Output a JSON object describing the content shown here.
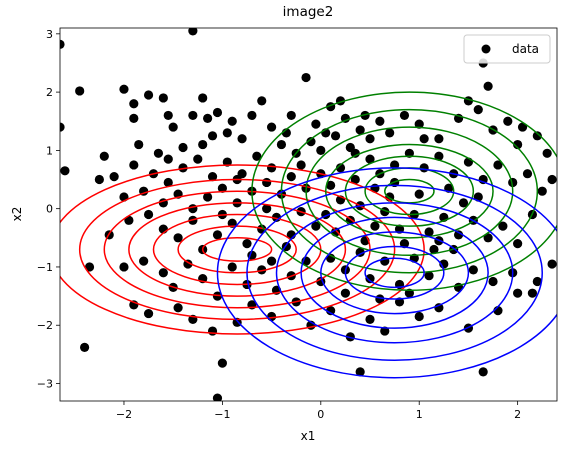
{
  "chart_data": {
    "type": "scatter",
    "title": "image2",
    "xlabel": "x1",
    "ylabel": "x2",
    "xlim": [
      -2.65,
      2.4
    ],
    "ylim": [
      -3.3,
      3.1
    ],
    "xticks": [
      -2,
      -1,
      0,
      1,
      2
    ],
    "yticks": [
      -3,
      -2,
      -1,
      0,
      1,
      2,
      3
    ],
    "xtick_labels": [
      "−2",
      "−1",
      "0",
      "1",
      "2"
    ],
    "ytick_labels": [
      "−3",
      "−2",
      "−1",
      "0",
      "1",
      "2",
      "3"
    ],
    "legend": {
      "position": "top-right",
      "entries": [
        "data"
      ]
    },
    "scatter_color": "#000000",
    "gaussians": [
      {
        "color": "#ff0000",
        "mean": [
          -0.85,
          -0.7
        ],
        "radii_x": [
          0.35,
          0.6,
          0.85,
          1.1,
          1.35,
          1.6,
          1.9
        ],
        "radii_y": [
          0.2,
          0.4,
          0.6,
          0.8,
          1.0,
          1.2,
          1.45
        ]
      },
      {
        "color": "#008000",
        "mean": [
          0.9,
          0.3
        ],
        "radii_x": [
          0.25,
          0.45,
          0.65,
          0.85,
          1.05,
          1.3,
          1.6
        ],
        "radii_y": [
          0.2,
          0.4,
          0.6,
          0.8,
          1.1,
          1.4,
          1.7
        ]
      },
      {
        "color": "#0000ff",
        "mean": [
          0.75,
          -1.1
        ],
        "radii_x": [
          0.3,
          0.5,
          0.75,
          0.95,
          1.2,
          1.5,
          1.8
        ],
        "radii_y": [
          0.25,
          0.45,
          0.7,
          0.95,
          1.2,
          1.5,
          1.8
        ]
      }
    ],
    "points": [
      [
        -2.65,
        2.82
      ],
      [
        -1.3,
        3.05
      ],
      [
        -2.45,
        2.02
      ],
      [
        -2.0,
        2.05
      ],
      [
        -1.75,
        1.95
      ],
      [
        -1.9,
        1.8
      ],
      [
        -1.6,
        1.9
      ],
      [
        -1.2,
        1.9
      ],
      [
        -1.55,
        1.6
      ],
      [
        -1.9,
        1.55
      ],
      [
        -2.65,
        1.4
      ],
      [
        -2.6,
        0.65
      ],
      [
        -1.5,
        1.4
      ],
      [
        -1.3,
        1.6
      ],
      [
        -1.15,
        1.55
      ],
      [
        -1.05,
        1.65
      ],
      [
        -0.9,
        1.5
      ],
      [
        -0.6,
        1.85
      ],
      [
        -0.7,
        1.6
      ],
      [
        -1.85,
        1.1
      ],
      [
        -1.65,
        0.95
      ],
      [
        -1.4,
        1.05
      ],
      [
        -1.2,
        1.1
      ],
      [
        -1.1,
        1.25
      ],
      [
        -0.95,
        1.3
      ],
      [
        -0.8,
        1.2
      ],
      [
        -0.5,
        1.4
      ],
      [
        -0.3,
        1.6
      ],
      [
        -0.15,
        2.25
      ],
      [
        -0.05,
        1.45
      ],
      [
        0.1,
        1.75
      ],
      [
        0.2,
        1.85
      ],
      [
        0.25,
        1.55
      ],
      [
        0.4,
        1.35
      ],
      [
        -2.2,
        0.9
      ],
      [
        -1.9,
        0.75
      ],
      [
        -1.7,
        0.6
      ],
      [
        -1.55,
        0.45
      ],
      [
        -1.4,
        0.7
      ],
      [
        -1.25,
        0.85
      ],
      [
        -1.1,
        0.55
      ],
      [
        -0.95,
        0.8
      ],
      [
        -0.8,
        0.6
      ],
      [
        -0.65,
        0.9
      ],
      [
        -0.5,
        0.7
      ],
      [
        -0.4,
        1.1
      ],
      [
        -0.25,
        0.95
      ],
      [
        -0.1,
        1.15
      ],
      [
        0.0,
        1.0
      ],
      [
        0.15,
        1.25
      ],
      [
        0.3,
        1.05
      ],
      [
        0.5,
        1.2
      ],
      [
        0.6,
        1.5
      ],
      [
        0.7,
        1.3
      ],
      [
        0.85,
        1.6
      ],
      [
        1.0,
        1.45
      ],
      [
        1.2,
        1.2
      ],
      [
        1.4,
        1.55
      ],
      [
        1.5,
        1.85
      ],
      [
        1.6,
        1.7
      ],
      [
        1.7,
        2.1
      ],
      [
        1.65,
        2.5
      ],
      [
        1.9,
        1.5
      ],
      [
        2.05,
        1.4
      ],
      [
        2.2,
        1.25
      ],
      [
        2.3,
        0.95
      ],
      [
        -2.25,
        0.5
      ],
      [
        -2.0,
        0.2
      ],
      [
        -1.8,
        0.3
      ],
      [
        -1.6,
        0.1
      ],
      [
        -1.45,
        0.25
      ],
      [
        -1.3,
        0.0
      ],
      [
        -1.15,
        0.2
      ],
      [
        -1.0,
        0.35
      ],
      [
        -0.85,
        0.1
      ],
      [
        -0.7,
        0.3
      ],
      [
        -0.55,
        0.45
      ],
      [
        -0.4,
        0.25
      ],
      [
        -0.3,
        0.55
      ],
      [
        -0.15,
        0.35
      ],
      [
        0.0,
        0.6
      ],
      [
        0.1,
        0.4
      ],
      [
        0.2,
        0.7
      ],
      [
        0.35,
        0.5
      ],
      [
        0.5,
        0.85
      ],
      [
        0.6,
        0.6
      ],
      [
        0.75,
        0.75
      ],
      [
        0.9,
        0.95
      ],
      [
        1.05,
        0.7
      ],
      [
        1.2,
        0.9
      ],
      [
        1.35,
        0.6
      ],
      [
        1.5,
        0.8
      ],
      [
        1.65,
        0.5
      ],
      [
        1.8,
        0.75
      ],
      [
        1.95,
        0.45
      ],
      [
        2.1,
        0.6
      ],
      [
        2.25,
        0.3
      ],
      [
        -2.15,
        -0.45
      ],
      [
        -1.95,
        -0.2
      ],
      [
        -1.75,
        -0.1
      ],
      [
        -1.6,
        -0.35
      ],
      [
        -1.45,
        -0.5
      ],
      [
        -1.3,
        -0.2
      ],
      [
        -1.2,
        -0.7
      ],
      [
        -1.05,
        -0.45
      ],
      [
        -0.9,
        -0.25
      ],
      [
        -0.75,
        -0.6
      ],
      [
        -0.6,
        -0.35
      ],
      [
        -0.45,
        -0.15
      ],
      [
        -0.3,
        -0.45
      ],
      [
        -0.2,
        -0.05
      ],
      [
        -0.05,
        -0.3
      ],
      [
        0.05,
        -0.1
      ],
      [
        0.15,
        -0.4
      ],
      [
        0.3,
        -0.2
      ],
      [
        0.4,
        0.05
      ],
      [
        0.55,
        -0.3
      ],
      [
        0.65,
        -0.05
      ],
      [
        0.8,
        -0.35
      ],
      [
        0.95,
        -0.1
      ],
      [
        1.1,
        -0.4
      ],
      [
        1.25,
        -0.15
      ],
      [
        1.4,
        -0.45
      ],
      [
        1.55,
        -0.2
      ],
      [
        1.7,
        -0.5
      ],
      [
        1.85,
        -0.3
      ],
      [
        2.0,
        -0.6
      ],
      [
        2.15,
        -0.1
      ],
      [
        2.35,
        -0.95
      ],
      [
        -2.35,
        -1.0
      ],
      [
        -2.0,
        -1.0
      ],
      [
        -1.8,
        -0.9
      ],
      [
        -1.6,
        -1.1
      ],
      [
        -1.5,
        -1.35
      ],
      [
        -1.35,
        -0.95
      ],
      [
        -1.2,
        -1.2
      ],
      [
        -1.05,
        -1.5
      ],
      [
        -0.9,
        -1.0
      ],
      [
        -0.75,
        -1.3
      ],
      [
        -0.6,
        -1.05
      ],
      [
        -0.45,
        -1.4
      ],
      [
        -0.3,
        -1.15
      ],
      [
        -0.15,
        -0.9
      ],
      [
        0.0,
        -1.25
      ],
      [
        0.1,
        -0.85
      ],
      [
        0.25,
        -1.05
      ],
      [
        0.4,
        -0.75
      ],
      [
        0.5,
        -1.2
      ],
      [
        0.65,
        -0.9
      ],
      [
        0.8,
        -1.3
      ],
      [
        0.95,
        -0.85
      ],
      [
        1.1,
        -1.15
      ],
      [
        1.25,
        -0.95
      ],
      [
        1.4,
        -1.35
      ],
      [
        1.55,
        -1.05
      ],
      [
        1.75,
        -1.25
      ],
      [
        1.95,
        -1.1
      ],
      [
        2.15,
        -1.45
      ],
      [
        -2.4,
        -2.38
      ],
      [
        -1.9,
        -1.65
      ],
      [
        -1.75,
        -1.8
      ],
      [
        -1.45,
        -1.7
      ],
      [
        -1.3,
        -1.9
      ],
      [
        -1.1,
        -2.1
      ],
      [
        -0.85,
        -1.95
      ],
      [
        -0.7,
        -1.65
      ],
      [
        -0.5,
        -1.85
      ],
      [
        -0.25,
        -1.6
      ],
      [
        -0.1,
        -2.0
      ],
      [
        0.1,
        -1.75
      ],
      [
        0.3,
        -2.2
      ],
      [
        0.5,
        -1.9
      ],
      [
        0.65,
        -2.1
      ],
      [
        0.8,
        -1.6
      ],
      [
        1.0,
        -1.85
      ],
      [
        1.2,
        -1.7
      ],
      [
        1.5,
        -2.05
      ],
      [
        1.8,
        -1.75
      ],
      [
        2.0,
        -1.45
      ],
      [
        2.2,
        -1.25
      ],
      [
        -1.0,
        -2.65
      ],
      [
        -1.05,
        -3.25
      ],
      [
        0.4,
        -2.8
      ],
      [
        1.65,
        -2.8
      ],
      [
        -0.55,
        0.0
      ],
      [
        -0.35,
        -0.65
      ],
      [
        0.2,
        0.15
      ],
      [
        0.45,
        -0.55
      ],
      [
        0.7,
        0.2
      ],
      [
        0.85,
        -0.6
      ],
      [
        1.0,
        0.25
      ],
      [
        1.15,
        -0.7
      ],
      [
        -0.7,
        -0.8
      ],
      [
        -0.2,
        0.75
      ],
      [
        0.35,
        0.95
      ],
      [
        0.55,
        0.35
      ],
      [
        0.75,
        0.45
      ],
      [
        1.3,
        0.35
      ],
      [
        1.45,
        0.1
      ],
      [
        1.6,
        0.2
      ],
      [
        -0.85,
        0.5
      ],
      [
        -1.0,
        -0.1
      ],
      [
        -0.5,
        -0.9
      ],
      [
        0.25,
        -1.45
      ],
      [
        0.6,
        -1.55
      ],
      [
        0.9,
        -1.45
      ],
      [
        1.2,
        -0.55
      ],
      [
        1.35,
        -0.7
      ],
      [
        2.35,
        0.5
      ],
      [
        -2.1,
        0.55
      ],
      [
        -1.55,
        0.85
      ],
      [
        -0.35,
        1.3
      ],
      [
        0.05,
        1.3
      ],
      [
        0.45,
        1.6
      ],
      [
        1.05,
        1.2
      ],
      [
        1.75,
        1.35
      ],
      [
        2.0,
        1.1
      ]
    ]
  }
}
